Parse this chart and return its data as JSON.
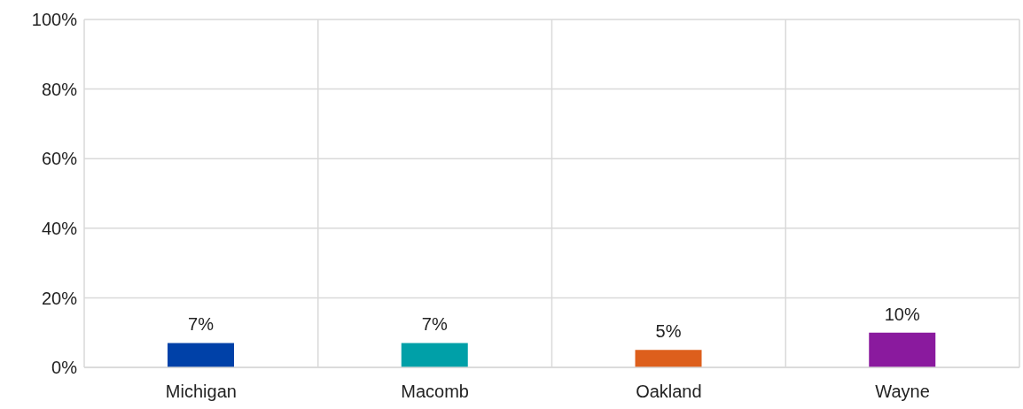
{
  "chart_data": {
    "type": "bar",
    "categories": [
      "Michigan",
      "Macomb",
      "Oakland",
      "Wayne"
    ],
    "values": [
      7,
      7,
      5,
      10
    ],
    "colors": [
      "#0041a8",
      "#00a0a8",
      "#dd5f1c",
      "#8a1a9e"
    ],
    "value_labels": [
      "7%",
      "7%",
      "5%",
      "10%"
    ],
    "ylim": [
      0,
      100
    ],
    "yticks": [
      {
        "value": 0,
        "label": "0%"
      },
      {
        "value": 20,
        "label": "20%"
      },
      {
        "value": 40,
        "label": "40%"
      },
      {
        "value": 60,
        "label": "60%"
      },
      {
        "value": 80,
        "label": "80%"
      },
      {
        "value": 100,
        "label": "100%"
      }
    ],
    "grid": true
  }
}
